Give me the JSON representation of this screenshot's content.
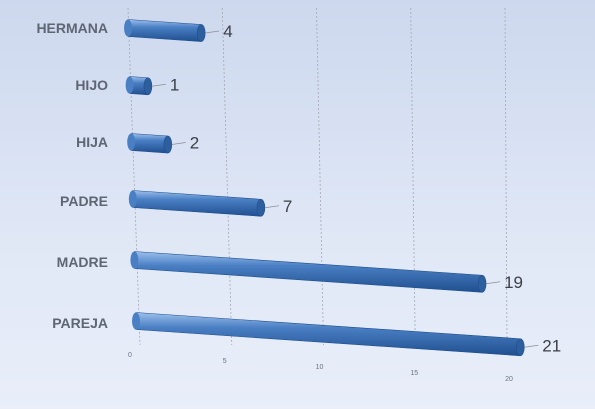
{
  "chart_data": {
    "type": "bar",
    "orientation": "horizontal",
    "style": "3d-cylinder",
    "categories": [
      "HERMANA",
      "HIJO",
      "HIJA",
      "PADRE",
      "MADRE",
      "PAREJA"
    ],
    "values": [
      4,
      1,
      2,
      7,
      19,
      21
    ],
    "x_ticks": [
      0,
      5,
      10,
      15,
      20
    ],
    "xlim": [
      0,
      20
    ],
    "grid": "vertical",
    "legend": "none",
    "colors": {
      "bar": "#4a7fc4",
      "bar_dark": "#1f4f8f",
      "bar_light": "#9cc0ec",
      "grid": "#a3a8b2"
    }
  }
}
